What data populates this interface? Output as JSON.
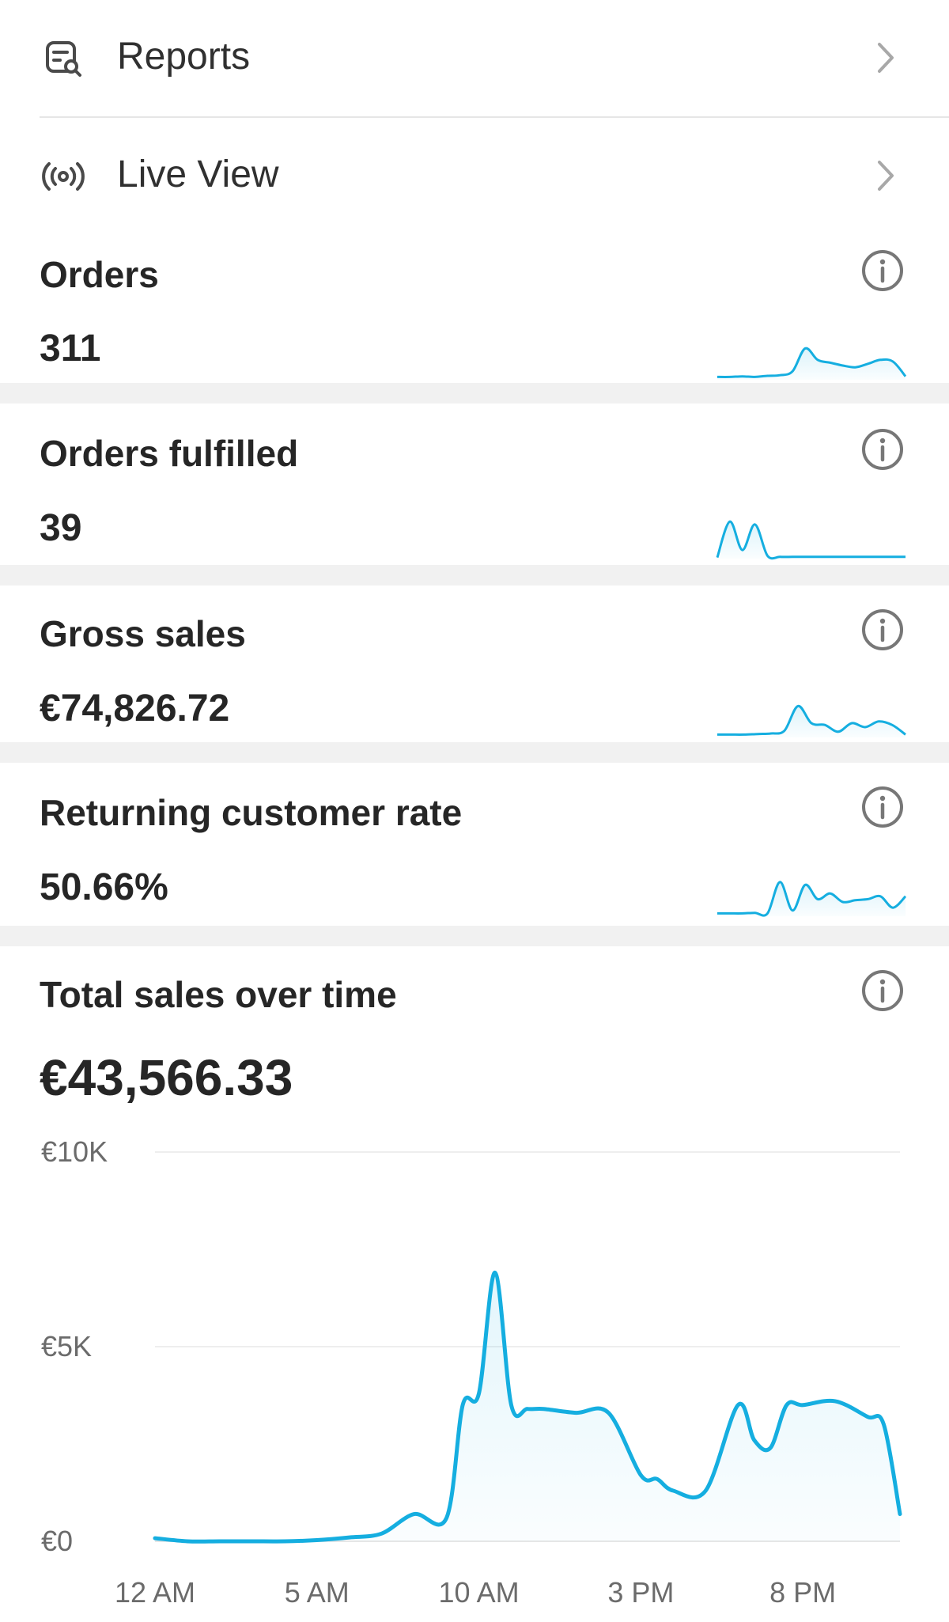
{
  "nav": {
    "reports": {
      "label": "Reports",
      "icon": "report-search-icon"
    },
    "live_view": {
      "label": "Live View",
      "icon": "live-broadcast-icon"
    }
  },
  "metrics": [
    {
      "title": "Orders",
      "value": "311",
      "spark": [
        0.05,
        0.05,
        0.06,
        0.05,
        0.07,
        0.08,
        0.15,
        0.55,
        0.35,
        0.3,
        0.25,
        0.22,
        0.28,
        0.35,
        0.32,
        0.06
      ]
    },
    {
      "title": "Orders fulfilled",
      "value": "39",
      "spark": [
        0.02,
        0.65,
        0.15,
        0.6,
        0.05,
        0.03,
        0.03,
        0.03,
        0.03,
        0.03,
        0.03,
        0.03,
        0.03,
        0.03,
        0.03,
        0.03
      ]
    },
    {
      "title": "Gross sales",
      "value": "€74,826.72",
      "spark": [
        0.05,
        0.05,
        0.05,
        0.06,
        0.07,
        0.12,
        0.55,
        0.25,
        0.22,
        0.1,
        0.25,
        0.18,
        0.28,
        0.22,
        0.05
      ]
    },
    {
      "title": "Returning customer rate",
      "value": "50.66%",
      "spark": [
        0.05,
        0.05,
        0.05,
        0.06,
        0.05,
        0.6,
        0.1,
        0.55,
        0.3,
        0.4,
        0.25,
        0.28,
        0.3,
        0.35,
        0.15,
        0.35
      ]
    }
  ],
  "total_sales": {
    "title": "Total sales over time",
    "value": "€43,566.33"
  },
  "colors": {
    "accent": "#15aee0",
    "separator": "#f1f1f1",
    "grid": "#eeeeee"
  },
  "chart_data": {
    "type": "area",
    "x_tick_labels": [
      "12 AM",
      "5 AM",
      "10 AM",
      "3 PM",
      "8 PM"
    ],
    "y_tick_labels": [
      "€10K",
      "€5K",
      "€0"
    ],
    "y_tick_values": [
      10000,
      5000,
      0
    ],
    "ylim": [
      0,
      10000
    ],
    "x_hours": [
      0,
      1,
      2,
      3,
      4,
      5,
      6,
      7,
      8,
      9,
      9.5,
      10,
      10.5,
      11,
      11.5,
      12,
      13,
      14,
      15,
      15.5,
      16,
      17,
      18,
      18.5,
      19,
      19.5,
      20,
      21,
      22,
      22.5,
      23
    ],
    "values": [
      80,
      0,
      0,
      0,
      0,
      30,
      100,
      200,
      700,
      600,
      3500,
      3800,
      6900,
      3500,
      3400,
      3400,
      3300,
      3300,
      1700,
      1600,
      1300,
      1300,
      3500,
      2600,
      2400,
      3500,
      3500,
      3600,
      3200,
      3000,
      700
    ]
  },
  "info_icon": "info-icon",
  "chevron_icon": "chevron-right-icon"
}
